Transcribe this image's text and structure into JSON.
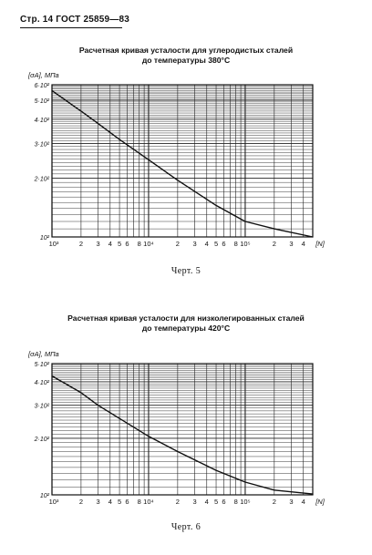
{
  "header": {
    "text": "Стр. 14 ГОСТ 25859—83"
  },
  "charts": [
    {
      "title_line1": "Расчетная кривая усталости для углеродистых сталей",
      "title_line2": "до температуры 380°С",
      "caption": "Черт.  5",
      "y_axis_label": "[σA], МПа",
      "x_axis_label": "[N]"
    },
    {
      "title_line1": "Расчетная кривая усталости для низколегированных сталей",
      "title_line2": "до температуры 420°С",
      "caption": "Черт.  6",
      "y_axis_label": "[σA], МПа",
      "x_axis_label": "[N]"
    }
  ],
  "chart_data": [
    {
      "type": "line",
      "title": "Расчетная кривая усталости для углеродистых сталей до температуры 380°С",
      "xlabel": "[N]",
      "ylabel": "[σA], МПа",
      "x_scale": "log",
      "y_scale": "log",
      "xlim": [
        1000,
        500000
      ],
      "ylim": [
        100,
        600
      ],
      "grid": true,
      "x_tick_labels": [
        "10³",
        "2",
        "3",
        "4",
        "5",
        "6",
        "8",
        "10⁴",
        "2",
        "3",
        "4",
        "5",
        "6",
        "8",
        "10⁵",
        "2",
        "3",
        "4"
      ],
      "y_tick_labels": [
        "6·10²",
        "5·10²",
        "4·10²",
        "3·10²",
        "2·10²",
        "10²"
      ],
      "x": [
        1000,
        2000,
        3000,
        5000,
        10000,
        20000,
        50000,
        100000,
        200000,
        500000
      ],
      "y": [
        560,
        440,
        380,
        315,
        248,
        195,
        145,
        120,
        110,
        100
      ]
    },
    {
      "type": "line",
      "title": "Расчетная кривая усталости для низколегированных сталей до температуры 420°С",
      "xlabel": "[N]",
      "ylabel": "[σA], МПа",
      "x_scale": "log",
      "y_scale": "log",
      "xlim": [
        1000,
        500000
      ],
      "ylim": [
        100,
        500
      ],
      "grid": true,
      "x_tick_labels": [
        "10³",
        "2",
        "3",
        "4",
        "5",
        "6",
        "8",
        "10⁴",
        "2",
        "3",
        "4",
        "5",
        "6",
        "8",
        "10⁵",
        "2",
        "3",
        "4"
      ],
      "y_tick_labels": [
        "5·10²",
        "4·10²",
        "3·10²",
        "2·10²",
        "10²"
      ],
      "x": [
        1000,
        2000,
        3000,
        5000,
        10000,
        20000,
        50000,
        100000,
        200000,
        500000
      ],
      "y": [
        430,
        350,
        300,
        255,
        205,
        170,
        135,
        117,
        106,
        101
      ]
    }
  ]
}
